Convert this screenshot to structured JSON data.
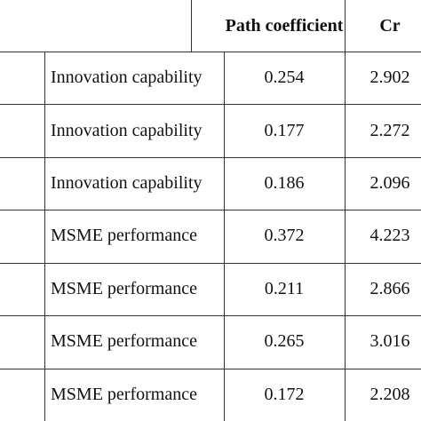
{
  "table": {
    "header": [
      "Path coefficient",
      "Cr"
    ],
    "rows": [
      [
        "Innovation capability",
        "0.254",
        "2.902"
      ],
      [
        "Innovation capability",
        "0.177",
        "2.272"
      ],
      [
        "Innovation capability",
        "0.186",
        "2.096"
      ],
      [
        "MSME performance",
        "0.372",
        "4.223"
      ],
      [
        "MSME performance",
        "0.211",
        "2.866"
      ],
      [
        "MSME performance",
        "0.265",
        "3.016"
      ],
      [
        "MSME performance",
        "0.172",
        "2.208"
      ]
    ]
  }
}
